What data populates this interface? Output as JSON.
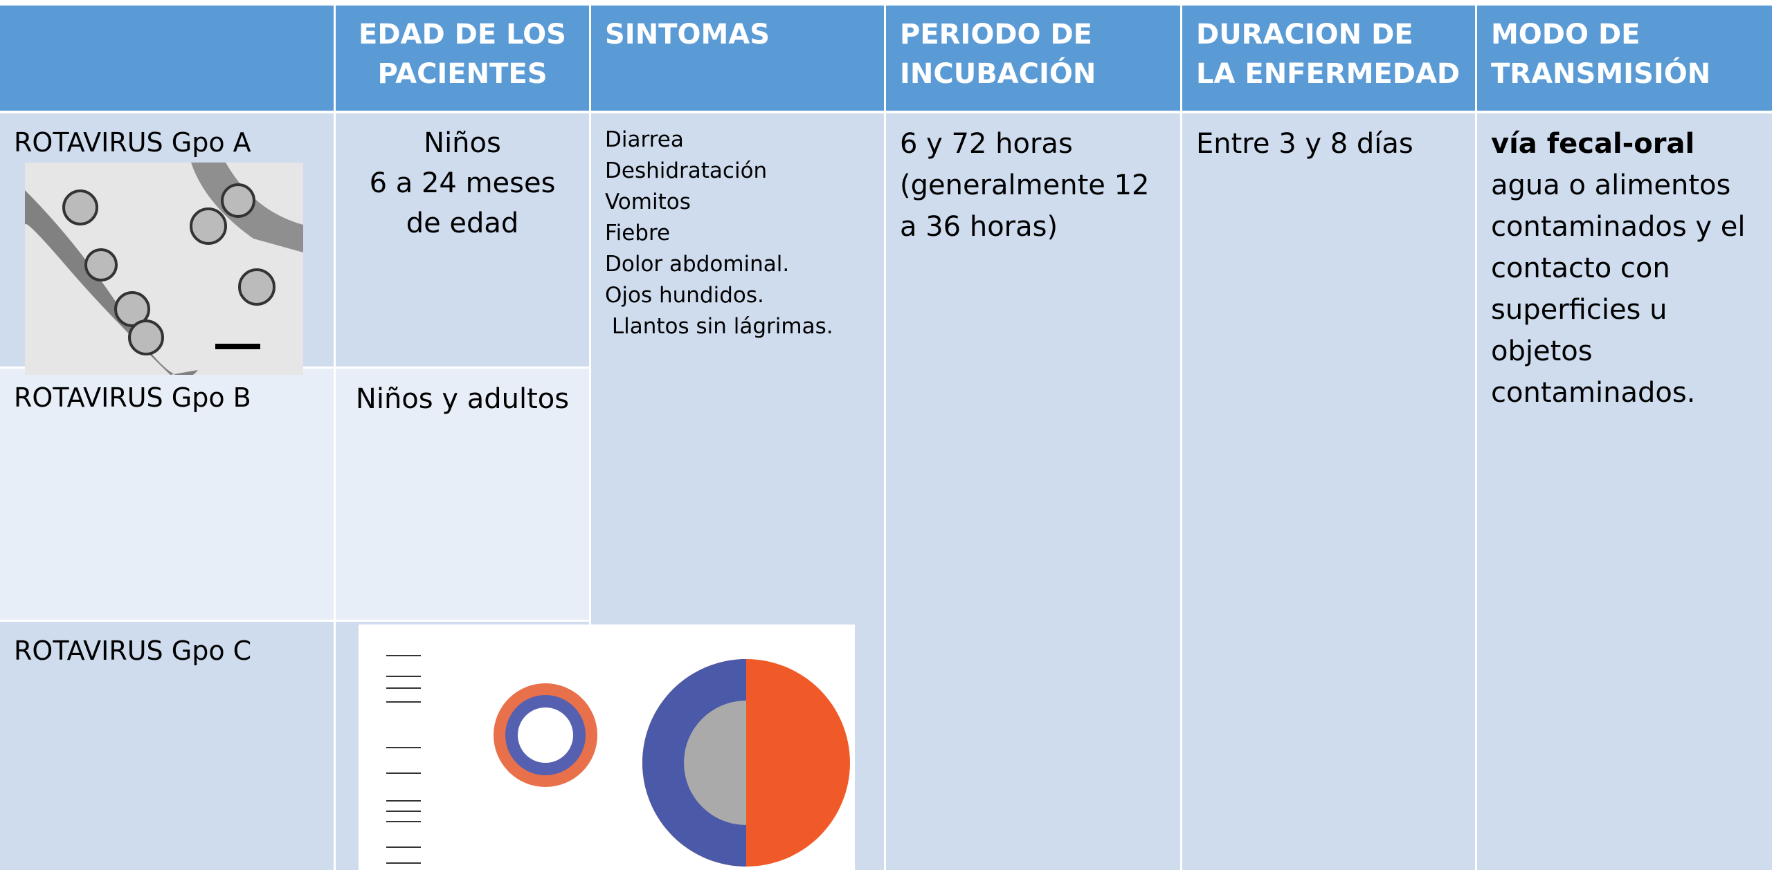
{
  "table": {
    "header": [
      "EDAD DE LOS PACIENTES",
      "SINTOMAS",
      "PERIODO DE INCUBACIÓN",
      "DURACION DE LA ENFERMEDAD",
      "MODO DE TRANSMISIÓN"
    ],
    "rows": [
      {
        "name": "ROTAVIRUS Gpo A",
        "age": [
          "Niños",
          "6  a 24 meses de edad"
        ]
      },
      {
        "name": "ROTAVIRUS Gpo B",
        "age": [
          "Niños y adultos"
        ]
      },
      {
        "name": "ROTAVIRUS Gpo C"
      }
    ],
    "symptoms": [
      "Diarrea",
      "Deshidratación",
      "Vomitos",
      "Fiebre",
      "Dolor abdominal.",
      "Ojos hundidos.",
      " Llantos sin lágrimas."
    ],
    "incubation": "6 y 72 horas (generalmente 12 a 36 horas)",
    "duration": "Entre 3 y 8 días",
    "transmission": {
      "bold": "vía fecal-oral",
      "text": "agua o alimentos contaminados y el contacto con superficies u objetos contaminados."
    }
  }
}
